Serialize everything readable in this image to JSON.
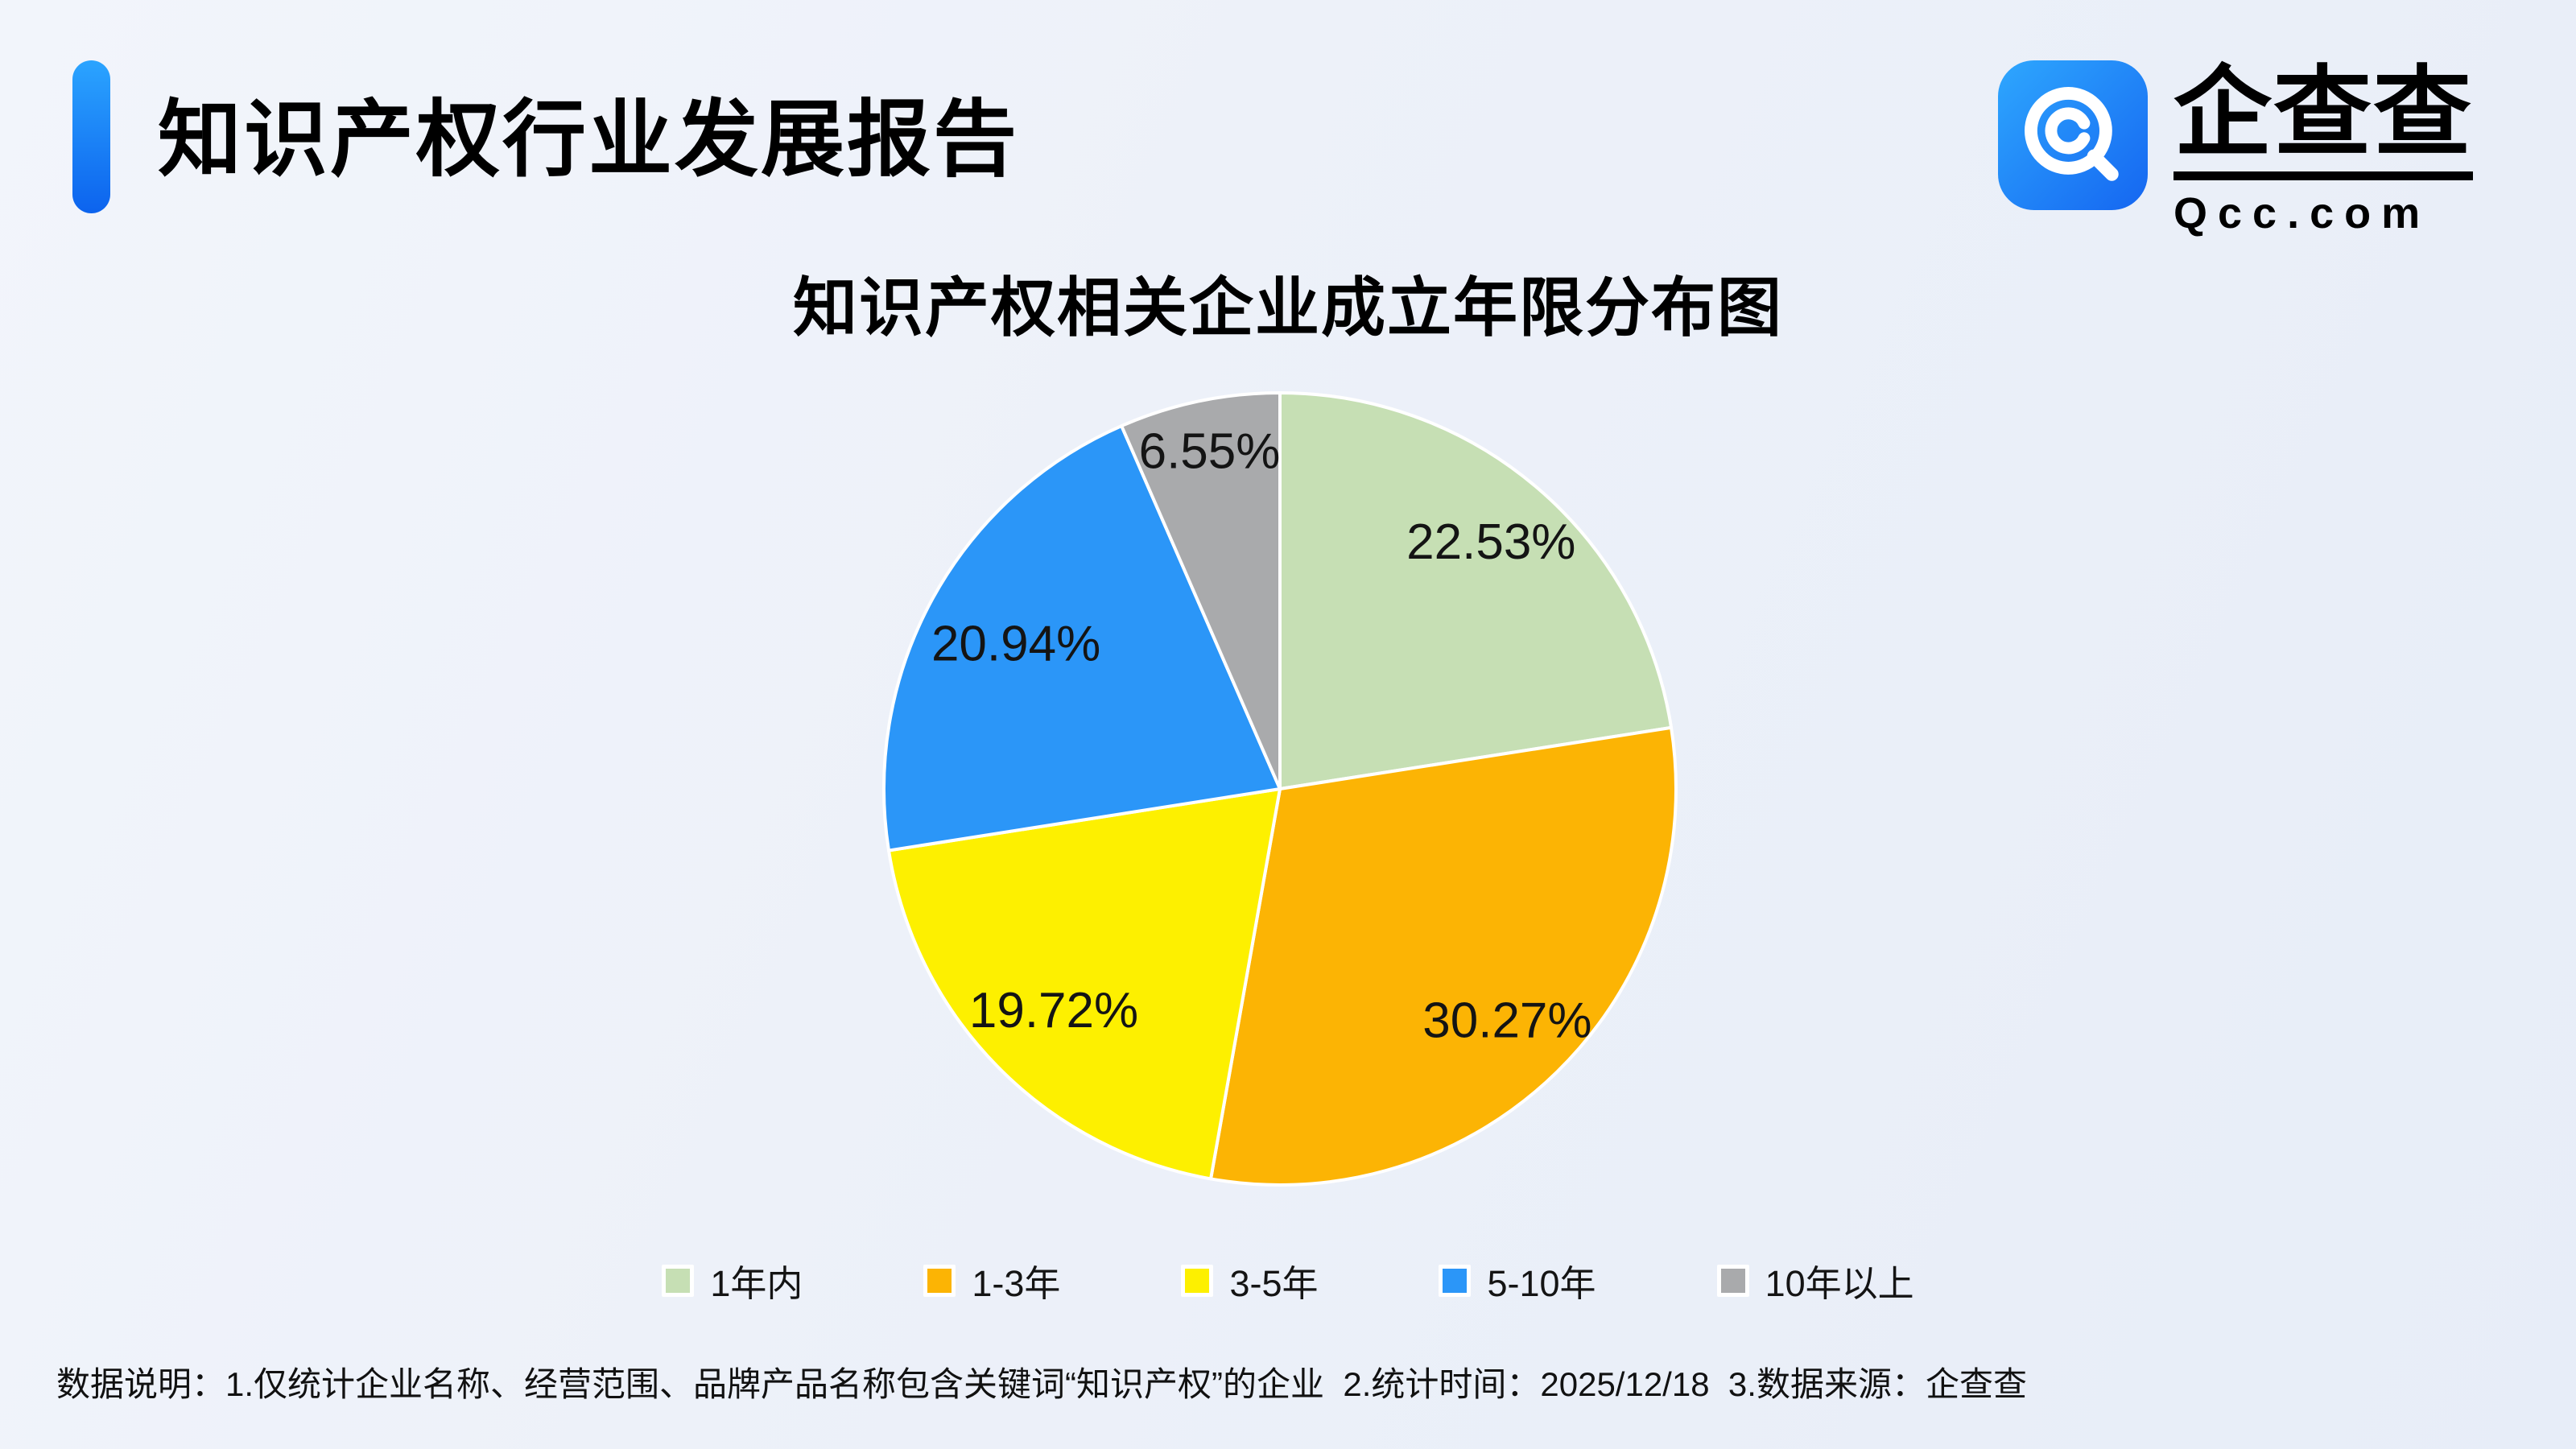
{
  "header": {
    "title": "知识产权行业发展报告"
  },
  "logo": {
    "brand": "企查查",
    "domain": "Qcc.com",
    "icon_gradient_start": "#2ea7fe",
    "icon_gradient_end": "#1566f1"
  },
  "chart_data": {
    "type": "pie",
    "title": "知识产权相关企业成立年限分布图",
    "categories": [
      "1年内",
      "1-3年",
      "3-5年",
      "5-10年",
      "10年以上"
    ],
    "values": [
      22.53,
      30.27,
      19.72,
      20.94,
      6.55
    ],
    "labels": [
      "22.53%",
      "30.27%",
      "19.72%",
      "20.94%",
      "6.55%"
    ],
    "colors": [
      "#c6dfb4",
      "#fcb404",
      "#fdf000",
      "#2b96f8",
      "#a9aaac"
    ],
    "start_angle_deg": 0,
    "direction": "clockwise",
    "label_radius": [
      0.82,
      0.82,
      0.8,
      0.76,
      0.87
    ],
    "slice_border_color": "#ffffff",
    "legend_position": "bottom"
  },
  "footer": {
    "note": "数据说明：1.仅统计企业名称、经营范围、品牌产品名称包含关键词“知识产权”的企业  2.统计时间：2025/12/18  3.数据来源：企查查"
  },
  "theme": {
    "accent_blue_top": "#2ba4ff",
    "accent_blue_bottom": "#0c63ee",
    "background": "#edf1f9"
  }
}
